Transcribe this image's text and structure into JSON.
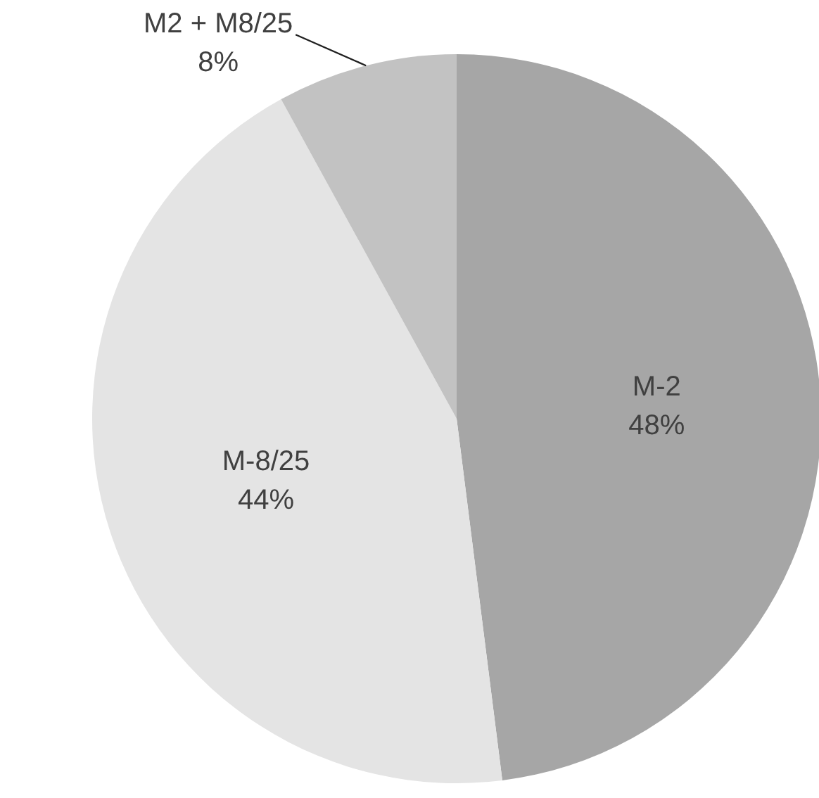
{
  "chart_data": {
    "type": "pie",
    "categories": [
      "M-2",
      "M-8/25",
      "M2 + M8/25"
    ],
    "values": [
      48,
      44,
      8
    ],
    "colors": [
      "#a6a6a6",
      "#e4e4e4",
      "#c2c2c2"
    ],
    "value_labels": [
      "48%",
      "44%",
      "8%"
    ]
  }
}
